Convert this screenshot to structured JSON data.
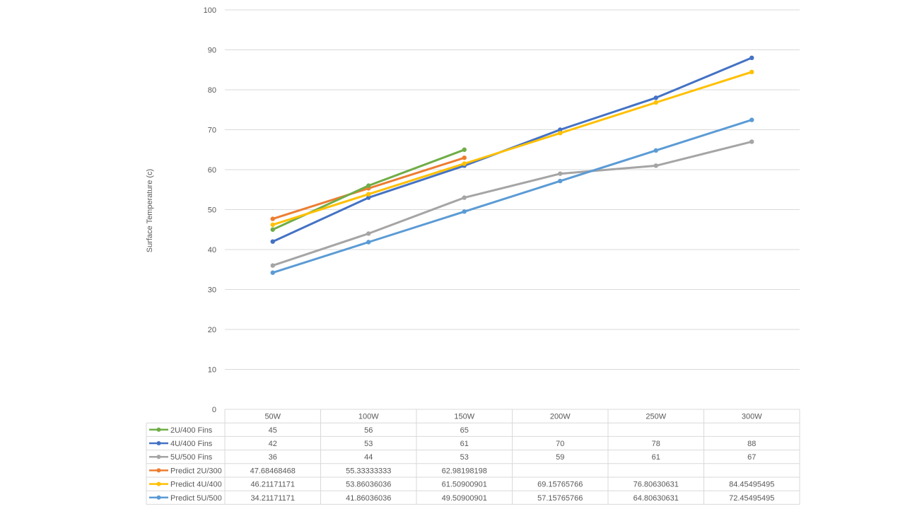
{
  "chart_data": {
    "type": "line",
    "ylabel": "Surface Temperature (c)",
    "ylim": [
      0,
      100
    ],
    "yticks": [
      0,
      10,
      20,
      30,
      40,
      50,
      60,
      70,
      80,
      90,
      100
    ],
    "grid": true,
    "legend": "data-table",
    "categories": [
      "50W",
      "100W",
      "150W",
      "200W",
      "250W",
      "300W"
    ],
    "series": [
      {
        "name": "2U/400 Fins",
        "color": "#70AD47",
        "values": [
          45,
          56,
          65,
          null,
          null,
          null
        ],
        "labels": [
          "45",
          "56",
          "65",
          "",
          "",
          ""
        ]
      },
      {
        "name": "4U/400 Fins",
        "color": "#4472C4",
        "values": [
          42,
          53,
          61,
          70,
          78,
          88
        ],
        "labels": [
          "42",
          "53",
          "61",
          "70",
          "78",
          "88"
        ]
      },
      {
        "name": "5U/500 Fins",
        "color": "#A5A5A5",
        "values": [
          36,
          44,
          53,
          59,
          61,
          67
        ],
        "labels": [
          "36",
          "44",
          "53",
          "59",
          "61",
          "67"
        ]
      },
      {
        "name": "Predict 2U/300",
        "color": "#ED7D31",
        "values": [
          47.68468468,
          55.33333333,
          62.98198198,
          null,
          null,
          null
        ],
        "labels": [
          "47.68468468",
          "55.33333333",
          "62.98198198",
          "",
          "",
          ""
        ]
      },
      {
        "name": "Predict 4U/400",
        "color": "#FFC000",
        "values": [
          46.21171171,
          53.86036036,
          61.50900901,
          69.15765766,
          76.80630631,
          84.45495495
        ],
        "labels": [
          "46.21171171",
          "53.86036036",
          "61.50900901",
          "69.15765766",
          "76.80630631",
          "84.45495495"
        ]
      },
      {
        "name": "Predict 5U/500",
        "color": "#5B9BD5",
        "values": [
          34.21171171,
          41.86036036,
          49.50900901,
          57.15765766,
          64.80630631,
          72.45495495
        ],
        "labels": [
          "34.21171171",
          "41.86036036",
          "49.50900901",
          "57.15765766",
          "64.80630631",
          "72.45495495"
        ]
      }
    ]
  }
}
